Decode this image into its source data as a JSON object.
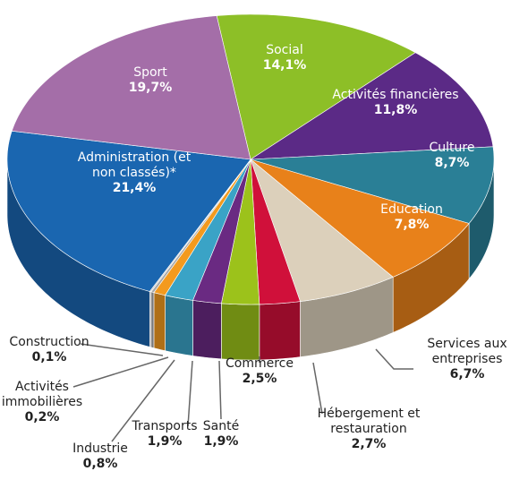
{
  "chart_data": {
    "type": "pie",
    "categories": [
      "Social",
      "Activités financières",
      "Culture",
      "Education",
      "Services aux entreprises",
      "Hébergement et restauration",
      "Commerce",
      "Santé",
      "Transports",
      "Industrie",
      "Activités immobilières",
      "Construction",
      "Administration (et non classés)*",
      "Sport"
    ],
    "values": [
      14.1,
      11.8,
      8.7,
      7.8,
      6.7,
      2.7,
      2.5,
      1.9,
      1.9,
      0.8,
      0.2,
      0.1,
      21.4,
      19.7
    ],
    "value_labels": [
      "14,1%",
      "11,8%",
      "8,7%",
      "7,8%",
      "6,7%",
      "2,7%",
      "2,5%",
      "1,9%",
      "1,9%",
      "0,8%",
      "0,2%",
      "0,1%",
      "21,4%",
      "19,7%"
    ],
    "colors": [
      "#8dbf27",
      "#5b2a86",
      "#2a7f96",
      "#e8811a",
      "#dcd0bb",
      "#d0103a",
      "#9cc21b",
      "#6a2a82",
      "#3aa3c6",
      "#f39a1e",
      "#a8a8a8",
      "#c8c8c8",
      "#1a66b0",
      "#a46ea8"
    ]
  }
}
